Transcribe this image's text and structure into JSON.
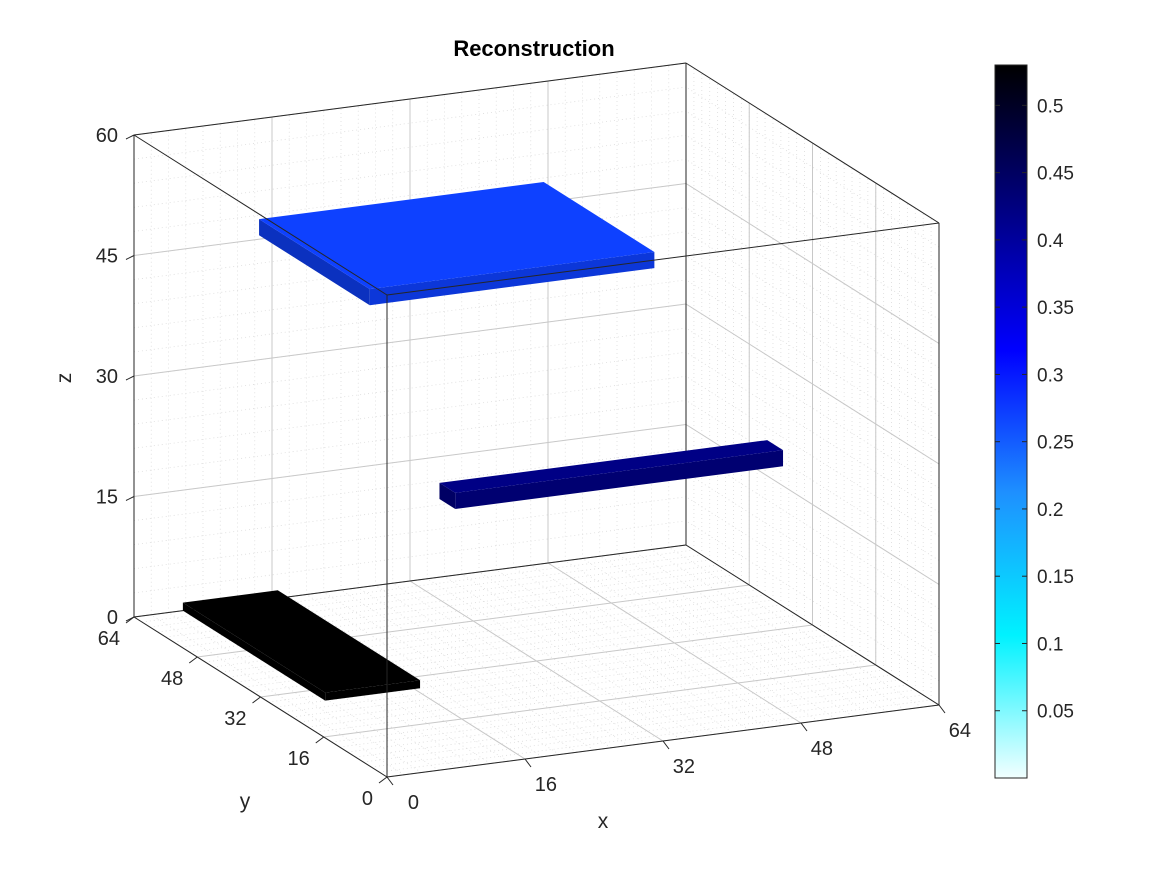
{
  "chart_data": {
    "type": "3d-voxel",
    "title": "Reconstruction",
    "xlabel": "x",
    "ylabel": "y",
    "zlabel": "z",
    "xlim": [
      0,
      64
    ],
    "ylim": [
      0,
      64
    ],
    "zlim": [
      0,
      60
    ],
    "xticks": [
      0,
      16,
      32,
      48,
      64
    ],
    "yticks": [
      0,
      16,
      32,
      48,
      64
    ],
    "zticks": [
      0,
      15,
      30,
      45,
      60
    ],
    "grid": true,
    "colorbar": {
      "location": "right",
      "colormap": [
        "#f2ffff",
        "#00f2ff",
        "#1e90ff",
        "#0000ff",
        "#000080",
        "#000000"
      ],
      "ticks": [
        0.05,
        0.1,
        0.15,
        0.2,
        0.25,
        0.3,
        0.35,
        0.4,
        0.45,
        0.5
      ],
      "range": [
        0,
        0.53
      ]
    },
    "objects": [
      {
        "name": "top-slab",
        "x": [
          9,
          42
        ],
        "y": [
          24,
          52
        ],
        "z": [
          50,
          52
        ],
        "value": 0.27
      },
      {
        "name": "middle-bar",
        "x": [
          18,
          56
        ],
        "y": [
          22,
          26
        ],
        "z": [
          24,
          26
        ],
        "value": 0.42
      },
      {
        "name": "bottom-bar",
        "x": [
          2,
          13
        ],
        "y": [
          20,
          56
        ],
        "z": [
          3,
          4
        ],
        "value": 0.53
      }
    ]
  }
}
